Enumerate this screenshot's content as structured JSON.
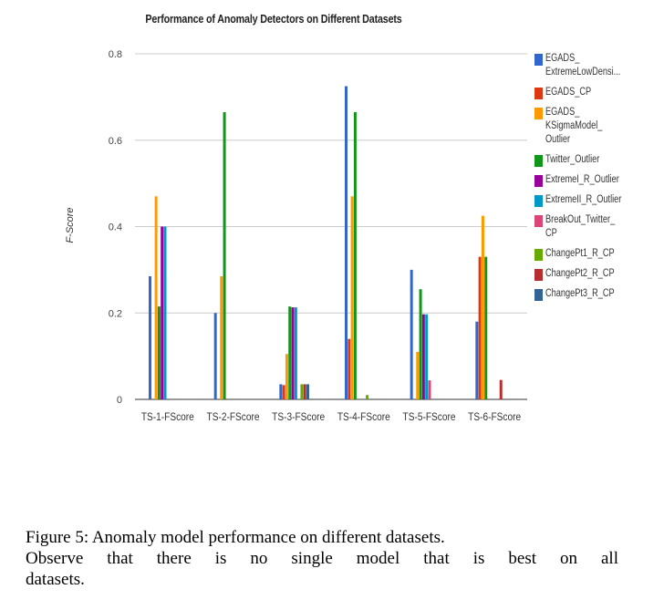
{
  "chart_data": {
    "type": "bar",
    "title": "Performance of Anomaly Detectors on Different Datasets",
    "xlabel": "",
    "ylabel": "F-Score",
    "ylim": [
      0,
      0.8
    ],
    "yticks": [
      "0",
      "0.2",
      "0.4",
      "0.6",
      "0.8"
    ],
    "categories": [
      "TS-1-FScore",
      "TS-2-FScore",
      "TS-3-FScore",
      "TS-4-FScore",
      "TS-5-FScore",
      "TS-6-FScore"
    ],
    "grid": true,
    "legend_position": "right",
    "series": [
      {
        "name": "EGADS_ ExtremeLowDensi...",
        "color": "#3366cc",
        "values": [
          0.285,
          0.2,
          0.035,
          0.725,
          0.3,
          0.18
        ]
      },
      {
        "name": "EGADS_CP",
        "color": "#dc3912",
        "values": [
          0,
          0,
          0.033,
          0.14,
          0,
          0.33
        ]
      },
      {
        "name": "EGADS_ KSigmaModel_ Outlier",
        "color": "#ff9900",
        "values": [
          0.47,
          0.285,
          0.105,
          0.47,
          0.11,
          0.425
        ]
      },
      {
        "name": "Twitter_Outlier",
        "color": "#109618",
        "values": [
          0.215,
          0.665,
          0.215,
          0.665,
          0.255,
          0.33
        ]
      },
      {
        "name": "ExtremeI_R_Outlier",
        "color": "#990099",
        "values": [
          0.4,
          0,
          0.213,
          0,
          0.197,
          0
        ]
      },
      {
        "name": "ExtremeII_R_Outlier",
        "color": "#0099c6",
        "values": [
          0.4,
          0,
          0.213,
          0,
          0.197,
          0
        ]
      },
      {
        "name": "BreakOut_Twitter_ CP",
        "color": "#dd4477",
        "values": [
          0,
          0,
          0,
          0,
          0.044,
          0
        ]
      },
      {
        "name": "ChangePt1_R_CP",
        "color": "#66aa00",
        "values": [
          0,
          0,
          0.035,
          0.01,
          0,
          0
        ]
      },
      {
        "name": "ChangePt2_R_CP",
        "color": "#b82e2e",
        "values": [
          0,
          0,
          0.035,
          0,
          0,
          0.045
        ]
      },
      {
        "name": "ChangePt3_R_CP",
        "color": "#316395",
        "values": [
          0,
          0,
          0.035,
          0,
          0,
          0
        ]
      }
    ]
  },
  "caption": {
    "line1": "Figure 5: Anomaly model performance on different datasets.",
    "line2": "Observe that there is no single model that is best on all",
    "line3": "datasets."
  }
}
